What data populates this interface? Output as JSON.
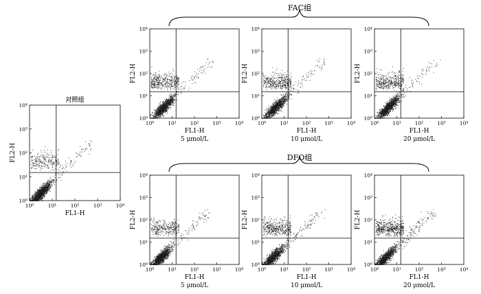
{
  "figure": {
    "groups": [
      {
        "key": "fac",
        "label": "FAC组"
      },
      {
        "key": "dfo",
        "label": "DFO组"
      }
    ]
  },
  "chart_data": [
    {
      "type": "scatter",
      "key": "control",
      "title": "对照组",
      "caption": "",
      "xlabel": "FL1-H",
      "ylabel": "FL2-H",
      "scale": "log",
      "xlim": [
        1,
        10000
      ],
      "ylim": [
        1,
        10000
      ],
      "ticks": [
        "10⁰",
        "10¹",
        "10²",
        "10³",
        "10⁴"
      ],
      "gate": {
        "x": 15,
        "y": 15
      },
      "population": {
        "center": [
          3,
          2
        ],
        "spread": 1.0,
        "upper_left": 0.14,
        "tail": 0.05
      }
    },
    {
      "type": "scatter",
      "key": "fac5",
      "group": "fac",
      "title": "",
      "caption": "5 μmol/L",
      "xlabel": "FL1-H",
      "ylabel": "FL2-H",
      "scale": "log",
      "xlim": [
        1,
        10000
      ],
      "ylim": [
        1,
        10000
      ],
      "ticks": [
        "10⁰",
        "10¹",
        "10²",
        "10³",
        "10⁴"
      ],
      "gate": {
        "x": 15,
        "y": 15
      },
      "population": {
        "center": [
          4,
          3
        ],
        "spread": 1.0,
        "upper_left": 0.22,
        "tail": 0.05
      }
    },
    {
      "type": "scatter",
      "key": "fac10",
      "group": "fac",
      "title": "",
      "caption": "10 μmol/L",
      "xlabel": "FL1-H",
      "ylabel": "FL2-H",
      "scale": "log",
      "xlim": [
        1,
        10000
      ],
      "ylim": [
        1,
        10000
      ],
      "ticks": [
        "10⁰",
        "10¹",
        "10²",
        "10³",
        "10⁴"
      ],
      "gate": {
        "x": 15,
        "y": 15
      },
      "population": {
        "center": [
          4,
          3
        ],
        "spread": 1.1,
        "upper_left": 0.25,
        "tail": 0.05
      }
    },
    {
      "type": "scatter",
      "key": "fac20",
      "group": "fac",
      "title": "",
      "caption": "20 μmol/L",
      "xlabel": "FL1-H",
      "ylabel": "FL2-H",
      "scale": "log",
      "xlim": [
        1,
        10000
      ],
      "ylim": [
        1,
        10000
      ],
      "ticks": [
        "10⁰",
        "10¹",
        "10²",
        "10³",
        "10⁴"
      ],
      "gate": {
        "x": 15,
        "y": 15
      },
      "population": {
        "center": [
          4,
          3
        ],
        "spread": 1.1,
        "upper_left": 0.23,
        "tail": 0.05
      }
    },
    {
      "type": "scatter",
      "key": "dfo5",
      "group": "dfo",
      "title": "",
      "caption": "5 μmol/L",
      "xlabel": "FL1-H",
      "ylabel": "FL2-H",
      "scale": "log",
      "xlim": [
        1,
        10000
      ],
      "ylim": [
        1,
        10000
      ],
      "ticks": [
        "10⁰",
        "10¹",
        "10²",
        "10³",
        "10⁴"
      ],
      "gate": {
        "x": 15,
        "y": 15
      },
      "population": {
        "center": [
          3,
          2
        ],
        "spread": 1.0,
        "upper_left": 0.17,
        "tail": 0.06
      }
    },
    {
      "type": "scatter",
      "key": "dfo10",
      "group": "dfo",
      "title": "",
      "caption": "10 μmol/L",
      "xlabel": "FL1-H",
      "ylabel": "FL2-H",
      "scale": "log",
      "xlim": [
        1,
        10000
      ],
      "ylim": [
        1,
        10000
      ],
      "ticks": [
        "10⁰",
        "10¹",
        "10²",
        "10³",
        "10⁴"
      ],
      "gate": {
        "x": 15,
        "y": 15
      },
      "population": {
        "center": [
          3,
          2
        ],
        "spread": 1.0,
        "upper_left": 0.24,
        "tail": 0.06
      }
    },
    {
      "type": "scatter",
      "key": "dfo20",
      "group": "dfo",
      "title": "",
      "caption": "20 μmol/L",
      "xlabel": "FL1-H",
      "ylabel": "FL2-H",
      "scale": "log",
      "xlim": [
        1,
        10000
      ],
      "ylim": [
        1,
        10000
      ],
      "ticks": [
        "10⁰",
        "10¹",
        "10²",
        "10³",
        "10⁴"
      ],
      "gate": {
        "x": 15,
        "y": 15
      },
      "population": {
        "center": [
          3,
          2
        ],
        "spread": 1.0,
        "upper_left": 0.3,
        "tail": 0.07
      }
    }
  ]
}
